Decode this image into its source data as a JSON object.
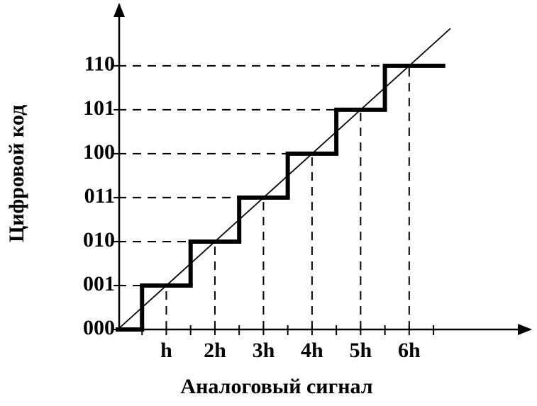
{
  "chart_data": {
    "type": "step",
    "x_label": "Аналоговый сигнал",
    "y_label": "Цифровой код",
    "x": [
      0,
      0.5,
      1.5,
      2.5,
      3.5,
      4.5,
      5.5,
      6.7
    ],
    "values": [
      0,
      1,
      2,
      3,
      4,
      5,
      6,
      6
    ],
    "diagonal": {
      "x": [
        0,
        6.85
      ],
      "values": [
        0,
        6.85
      ]
    },
    "xlim": [
      0,
      8.5
    ],
    "ylim": [
      0,
      7.4
    ],
    "xticks": [
      {
        "value": 1,
        "label": "h"
      },
      {
        "value": 2,
        "label": "2h"
      },
      {
        "value": 3,
        "label": "3h"
      },
      {
        "value": 4,
        "label": "4h"
      },
      {
        "value": 5,
        "label": "5h"
      },
      {
        "value": 6,
        "label": "6h"
      }
    ],
    "xminorticks": [
      0.5,
      1.5,
      2.5,
      3.5,
      4.5,
      5.5,
      6.5
    ],
    "yticks": [
      {
        "value": 0,
        "label": "000"
      },
      {
        "value": 1,
        "label": "001"
      },
      {
        "value": 2,
        "label": "010"
      },
      {
        "value": 3,
        "label": "011"
      },
      {
        "value": 4,
        "label": "100"
      },
      {
        "value": 5,
        "label": "101"
      },
      {
        "value": 6,
        "label": "110"
      }
    ],
    "color": "#000000"
  }
}
